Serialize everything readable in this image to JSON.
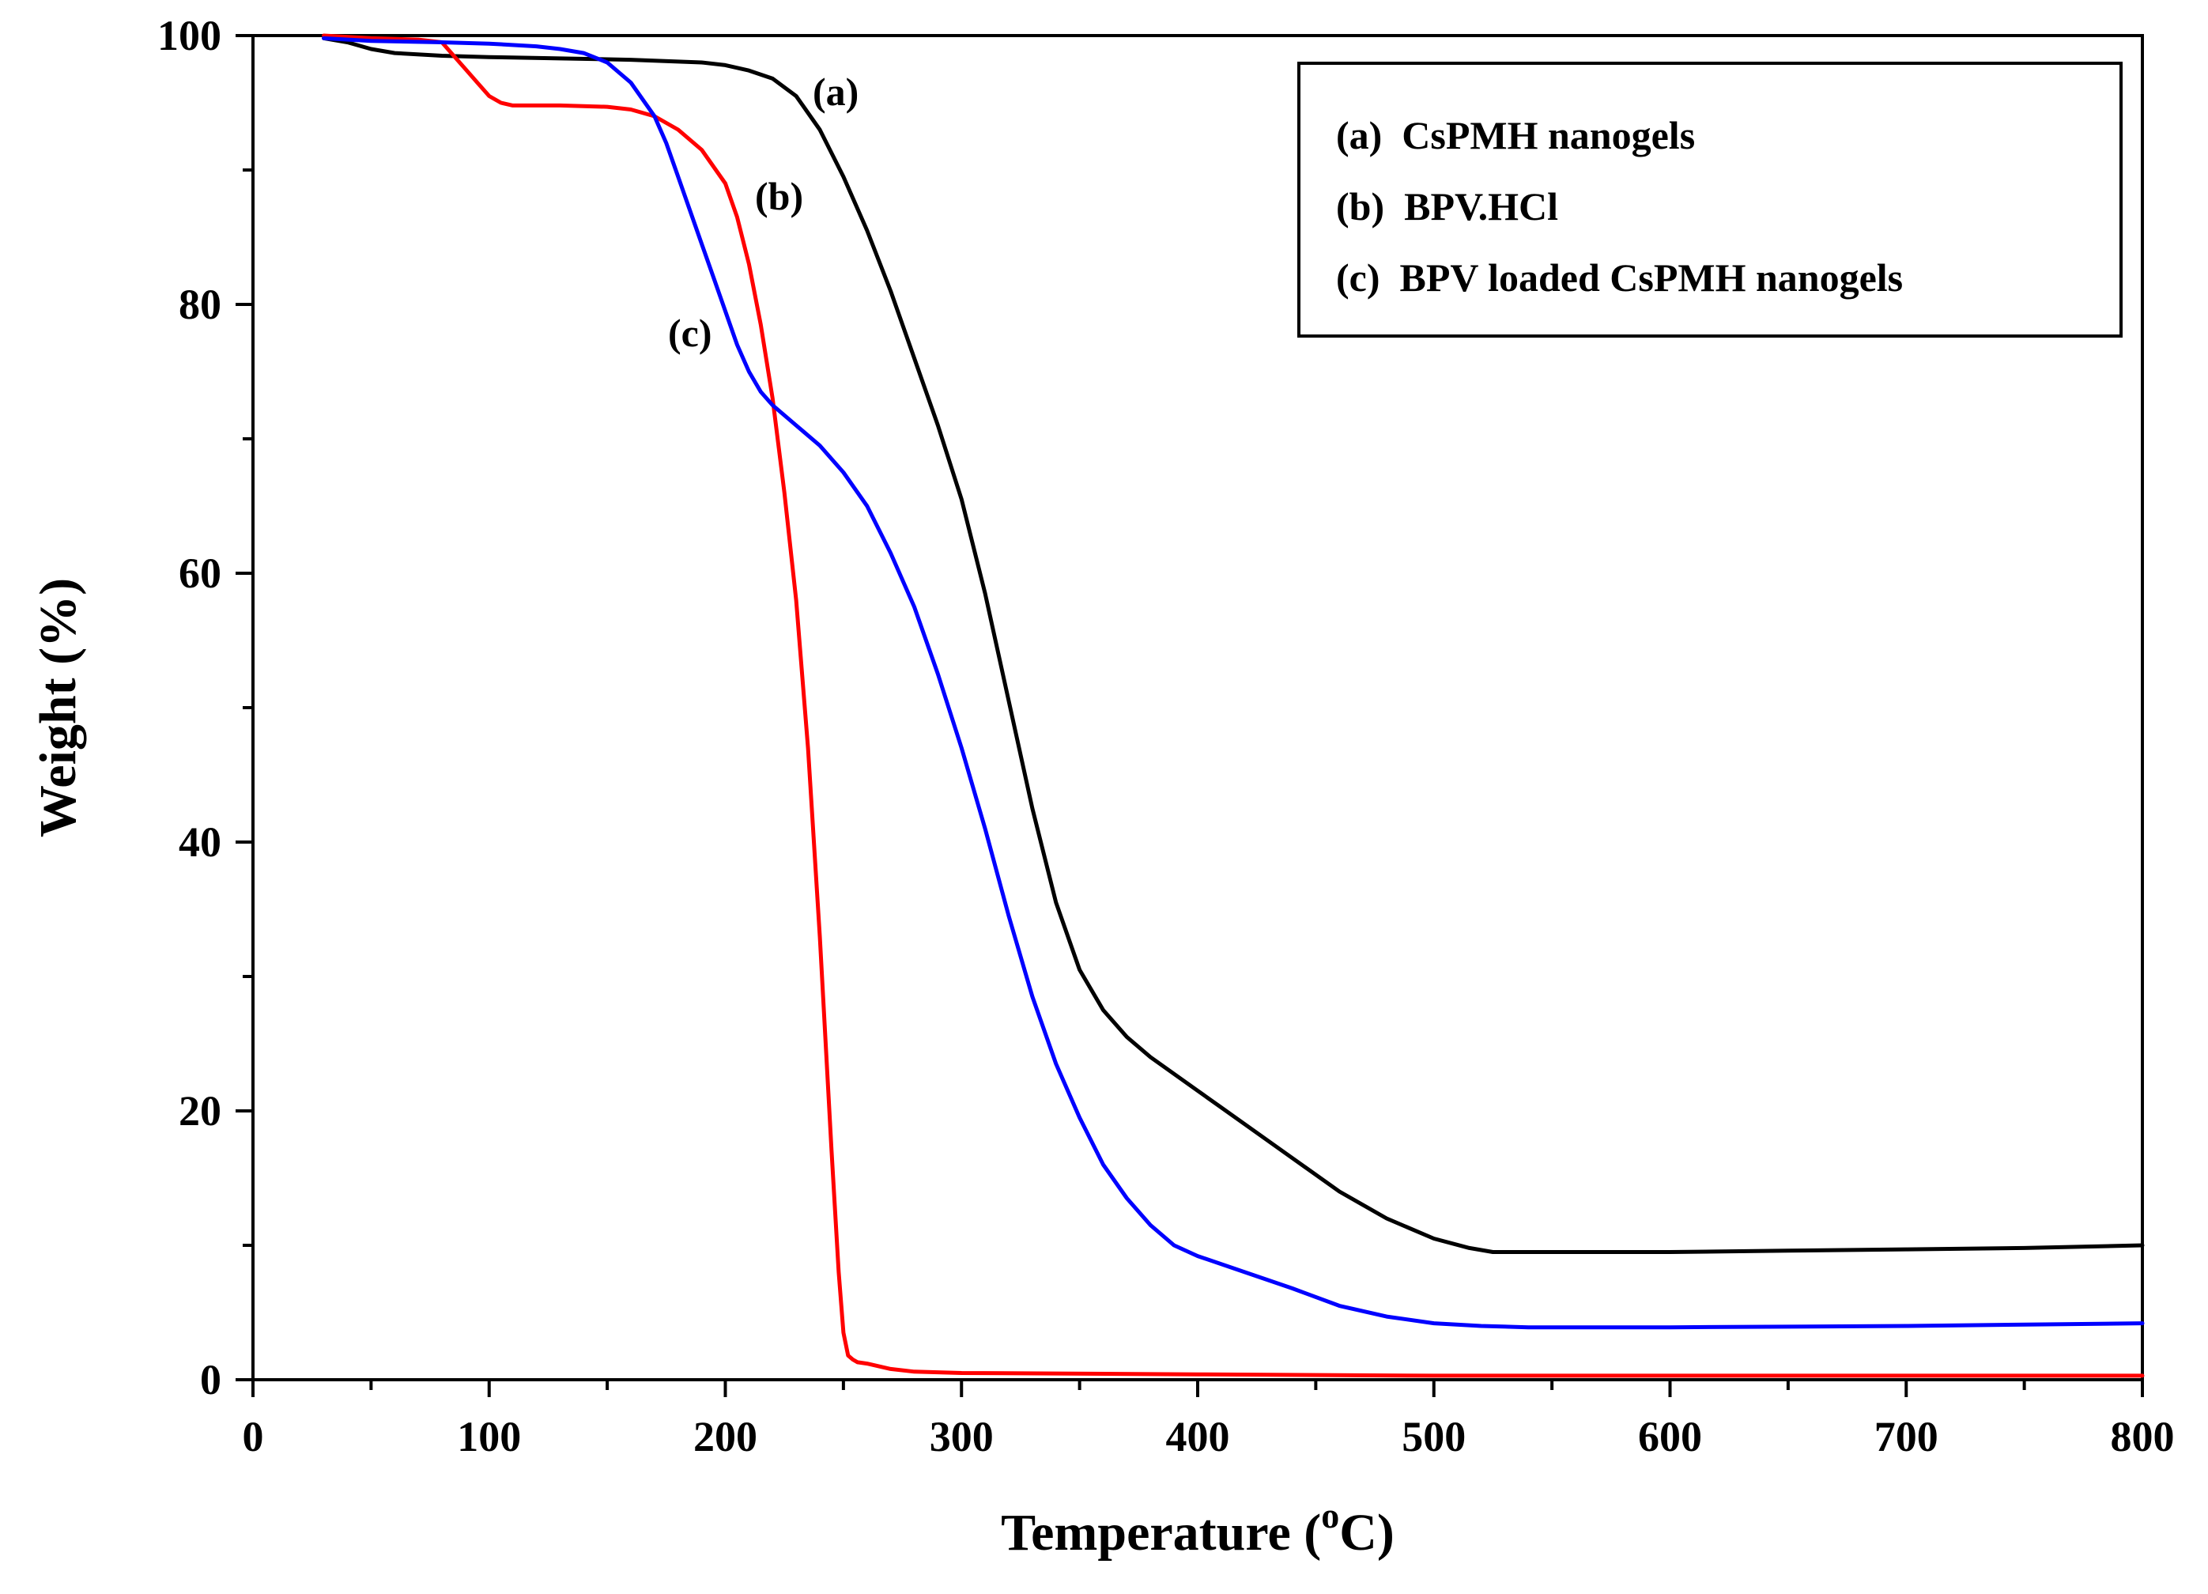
{
  "chart_data": {
    "type": "line",
    "title": "",
    "xlabel": "Temperature (",
    "xlabel_sup": "o",
    "xlabel_end": "C)",
    "ylabel": "Weight (%)",
    "xlim": [
      0,
      800
    ],
    "ylim": [
      0,
      100
    ],
    "xticks": [
      "0",
      "100",
      "200",
      "300",
      "400",
      "500",
      "600",
      "700",
      "800"
    ],
    "yticks": [
      "0",
      "20",
      "40",
      "60",
      "80",
      "100"
    ],
    "grid": false,
    "legend_position": "top-right",
    "series": [
      {
        "id": "a",
        "name": "(a)  CsPMH nanogels",
        "tag": "(a)",
        "color": "#000000",
        "x": [
          30,
          40,
          50,
          60,
          80,
          100,
          130,
          160,
          190,
          200,
          210,
          220,
          230,
          240,
          250,
          260,
          270,
          280,
          290,
          300,
          310,
          320,
          330,
          340,
          350,
          360,
          370,
          380,
          400,
          420,
          440,
          460,
          480,
          500,
          515,
          525,
          540,
          560,
          600,
          650,
          700,
          750,
          800
        ],
        "y": [
          99.8,
          99.5,
          99.0,
          98.7,
          98.5,
          98.4,
          98.3,
          98.2,
          98.0,
          97.8,
          97.4,
          96.8,
          95.5,
          93.0,
          89.5,
          85.5,
          81.0,
          76.0,
          71.0,
          65.5,
          58.5,
          50.5,
          42.5,
          35.5,
          30.5,
          27.5,
          25.5,
          24.0,
          21.5,
          19.0,
          16.5,
          14.0,
          12.0,
          10.5,
          9.8,
          9.5,
          9.5,
          9.5,
          9.5,
          9.6,
          9.7,
          9.8,
          10.0
        ]
      },
      {
        "id": "b",
        "name": "(b)  BPV.HCl",
        "tag": "(b)",
        "color": "#ff0000",
        "x": [
          30,
          50,
          70,
          80,
          85,
          90,
          95,
          100,
          105,
          110,
          130,
          150,
          160,
          170,
          180,
          190,
          200,
          205,
          210,
          215,
          220,
          225,
          230,
          235,
          240,
          245,
          248,
          250,
          252,
          254,
          256,
          260,
          270,
          280,
          300,
          400,
          500,
          600,
          700,
          800
        ],
        "y": [
          100,
          99.8,
          99.7,
          99.5,
          98.5,
          97.5,
          96.5,
          95.5,
          95.0,
          94.8,
          94.8,
          94.7,
          94.5,
          94.0,
          93.0,
          91.5,
          89.0,
          86.5,
          83.0,
          78.5,
          73.0,
          66.0,
          58.0,
          47.0,
          33.0,
          17.0,
          8.0,
          3.5,
          1.8,
          1.5,
          1.3,
          1.2,
          0.8,
          0.6,
          0.5,
          0.4,
          0.3,
          0.3,
          0.3,
          0.3
        ]
      },
      {
        "id": "c",
        "name": "(c)  BPV loaded CsPMH nanogels",
        "tag": "(c)",
        "color": "#0000ff",
        "x": [
          30,
          50,
          80,
          100,
          120,
          130,
          140,
          150,
          160,
          170,
          175,
          180,
          185,
          190,
          195,
          200,
          205,
          210,
          215,
          220,
          230,
          240,
          250,
          260,
          270,
          280,
          290,
          300,
          310,
          320,
          330,
          340,
          350,
          360,
          370,
          380,
          390,
          400,
          420,
          440,
          460,
          480,
          500,
          520,
          540,
          600,
          700,
          800
        ],
        "y": [
          99.8,
          99.6,
          99.5,
          99.4,
          99.2,
          99.0,
          98.7,
          98.0,
          96.5,
          94.0,
          92.0,
          89.5,
          87.0,
          84.5,
          82.0,
          79.5,
          77.0,
          75.0,
          73.5,
          72.5,
          71.0,
          69.5,
          67.5,
          65.0,
          61.5,
          57.5,
          52.5,
          47.0,
          41.0,
          34.5,
          28.5,
          23.5,
          19.5,
          16.0,
          13.5,
          11.5,
          10.0,
          9.2,
          8.0,
          6.8,
          5.5,
          4.7,
          4.2,
          4.0,
          3.9,
          3.9,
          4.0,
          4.2
        ]
      }
    ]
  }
}
